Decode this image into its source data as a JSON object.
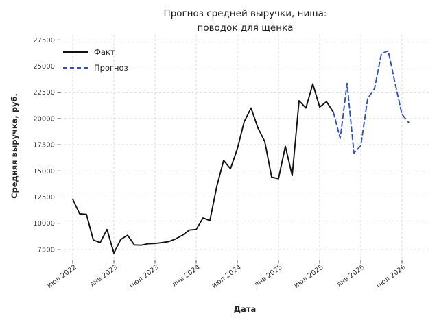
{
  "title": {
    "line1": "Прогноз средней выручки, ниша:",
    "line2": "поводок для щенка"
  },
  "axes": {
    "x_label": "Дата",
    "y_label": "Средняя выручка, руб."
  },
  "legend": {
    "fact_label": "Факт",
    "forecast_label": "Прогноз"
  },
  "colors": {
    "fact_line": "#111111",
    "forecast_line": "#2f4fc5",
    "grid": "#d4d4d4",
    "tick_text": "#333333"
  },
  "chart_data": {
    "type": "line",
    "title": "Прогноз средней выручки, ниша: поводок для щенка",
    "xlabel": "Дата",
    "ylabel": "Средняя выручка, руб.",
    "grid": true,
    "legend_position": "upper left",
    "ylim": [
      6500,
      28100
    ],
    "y_ticks": [
      7500,
      10000,
      12500,
      15000,
      17500,
      20000,
      22500,
      25000,
      27500
    ],
    "x_tick_labels": [
      "июл 2022",
      "янв 2023",
      "июл 2023",
      "янв 2024",
      "июл 2024",
      "янв 2025",
      "июл 2025",
      "янв 2026",
      "июл 2026"
    ],
    "x_tick_months": [
      "2022-07",
      "2023-01",
      "2023-07",
      "2024-01",
      "2024-07",
      "2025-01",
      "2025-07",
      "2026-01",
      "2026-07"
    ],
    "series": [
      {
        "name": "Факт",
        "style": "solid",
        "color": "#111111",
        "months": [
          "2022-07",
          "2022-08",
          "2022-09",
          "2022-10",
          "2022-11",
          "2022-12",
          "2023-01",
          "2023-02",
          "2023-03",
          "2023-04",
          "2023-05",
          "2023-06",
          "2023-07",
          "2023-08",
          "2023-09",
          "2023-10",
          "2023-11",
          "2023-12",
          "2024-01",
          "2024-02",
          "2024-03",
          "2024-04",
          "2024-05",
          "2024-06",
          "2024-07",
          "2024-08",
          "2024-09",
          "2024-10",
          "2024-11",
          "2024-12",
          "2025-01",
          "2025-02",
          "2025-03",
          "2025-04",
          "2025-05",
          "2025-06",
          "2025-07",
          "2025-08",
          "2025-09"
        ],
        "values": [
          12300,
          10900,
          10850,
          8400,
          8150,
          9400,
          7150,
          8450,
          8850,
          7930,
          7900,
          8050,
          8070,
          8150,
          8250,
          8500,
          8850,
          9350,
          9400,
          10500,
          10250,
          13500,
          16000,
          15200,
          17100,
          19700,
          21000,
          19100,
          17800,
          14400,
          14250,
          17350,
          14550,
          21700,
          21000,
          23300,
          21100,
          21600,
          20600
        ]
      },
      {
        "name": "Прогноз",
        "style": "dashed",
        "color": "#2f4fc5",
        "months": [
          "2025-09",
          "2025-10",
          "2025-11",
          "2025-12",
          "2026-01",
          "2026-02",
          "2026-03",
          "2026-04",
          "2026-05",
          "2026-06",
          "2026-07",
          "2026-08"
        ],
        "values": [
          20600,
          18100,
          23350,
          16700,
          17400,
          21900,
          22850,
          26200,
          26450,
          23350,
          20400,
          19600
        ]
      }
    ]
  }
}
